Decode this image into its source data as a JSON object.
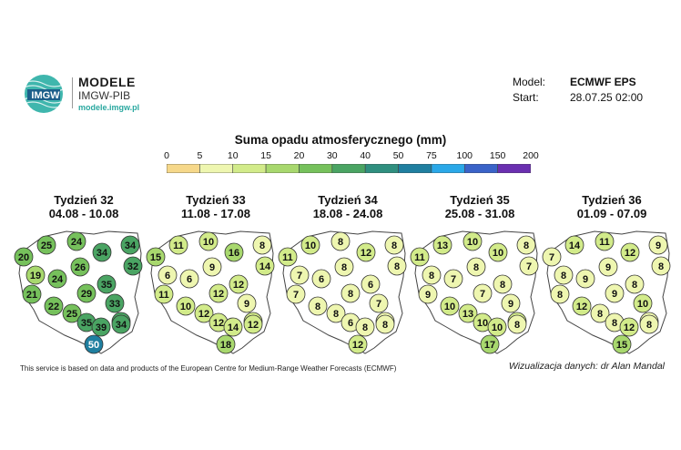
{
  "header": {
    "logo_mark": "IMGW",
    "logo_title": "MODELE",
    "logo_subtitle": "IMGW-PIB",
    "logo_url": "modele.imgw.pl",
    "model_label": "Model:",
    "model_value": "ECMWF EPS",
    "start_label": "Start:",
    "start_value": "28.07.25 02:00"
  },
  "title": "Suma opadu atmosferycznego (mm)",
  "legend": {
    "labels": [
      "0",
      "5",
      "10",
      "15",
      "20",
      "30",
      "40",
      "50",
      "75",
      "100",
      "150",
      "200"
    ],
    "colors": [
      "#f6d88a",
      "#eef6b0",
      "#d2eb8a",
      "#a8d86e",
      "#76c15c",
      "#4aa463",
      "#2f8f7f",
      "#1f7fa0",
      "#2aa8e8",
      "#3a63c8",
      "#6a2fb0",
      "#c0288a"
    ]
  },
  "weeks": [
    {
      "name": "Tydzień 32",
      "dates": "04.08 - 10.08",
      "values": [
        25,
        24,
        34,
        34,
        20,
        32,
        19,
        26,
        24,
        35,
        21,
        29,
        33,
        22,
        33,
        25,
        35,
        39,
        34,
        50
      ]
    },
    {
      "name": "Tydzień 33",
      "dates": "11.08 - 17.08",
      "values": [
        11,
        10,
        16,
        8,
        15,
        14,
        6,
        9,
        6,
        12,
        11,
        12,
        9,
        10,
        12,
        12,
        12,
        14,
        12,
        18
      ]
    },
    {
      "name": "Tydzień 34",
      "dates": "18.08 - 24.08",
      "values": [
        10,
        8,
        12,
        8,
        11,
        8,
        7,
        8,
        6,
        6,
        7,
        8,
        7,
        8,
        9,
        8,
        6,
        8,
        8,
        12
      ]
    },
    {
      "name": "Tydzień 35",
      "dates": "25.08 - 31.08",
      "values": [
        13,
        10,
        10,
        8,
        11,
        7,
        8,
        8,
        7,
        8,
        9,
        7,
        9,
        10,
        12,
        13,
        10,
        10,
        8,
        17
      ]
    },
    {
      "name": "Tydzień 36",
      "dates": "01.09 - 07.09",
      "values": [
        14,
        11,
        12,
        9,
        7,
        8,
        8,
        9,
        9,
        8,
        8,
        9,
        10,
        12,
        8,
        8,
        8,
        12,
        8,
        15
      ]
    }
  ],
  "footer": {
    "source": "This service is based on data and products of the European Centre for Medium-Range Weather Forecasts (ECMWF)",
    "credit": "Wizualizacja danych: dr Alan Mandal"
  }
}
